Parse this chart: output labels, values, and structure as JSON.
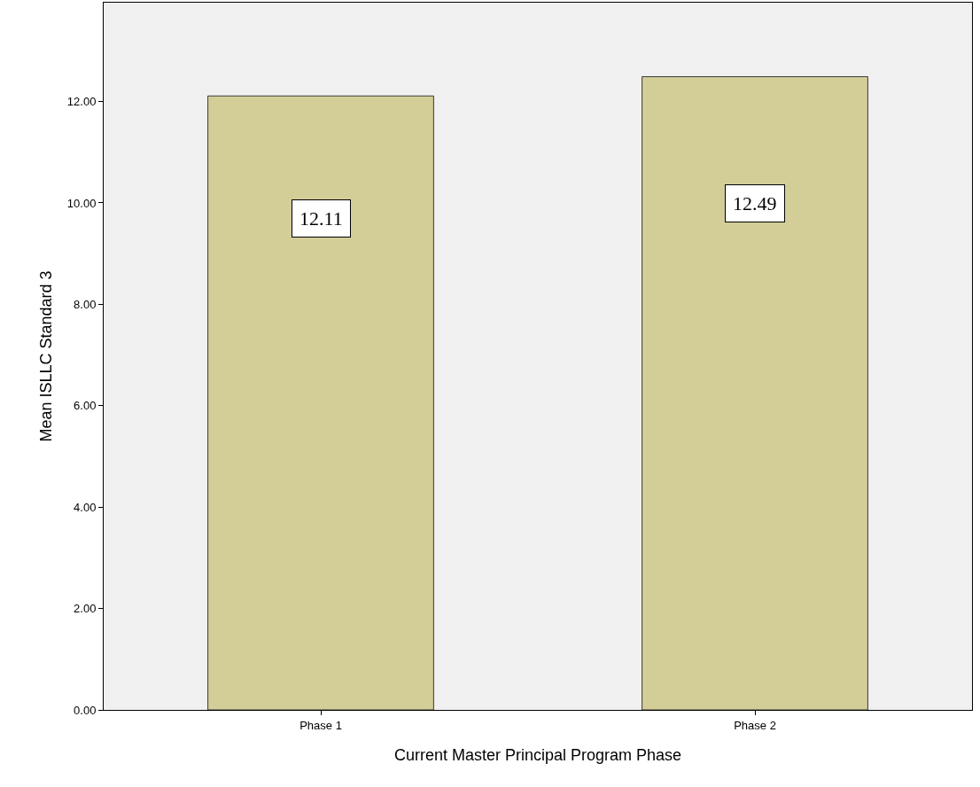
{
  "chart_data": {
    "type": "bar",
    "xlabel": "Current Master Principal Program Phase",
    "ylabel": "Mean ISLLC Standard 3",
    "categories": [
      "Phase 1",
      "Phase 2"
    ],
    "values": [
      12.11,
      12.49
    ],
    "color": "#d3ce97",
    "data_labels": true,
    "ylim": [
      0,
      13.95
    ],
    "yticks": [
      {
        "value": 0,
        "label": "0.00"
      },
      {
        "value": 2,
        "label": "2.00"
      },
      {
        "value": 4,
        "label": "4.00"
      },
      {
        "value": 6,
        "label": "6.00"
      },
      {
        "value": 8,
        "label": "8.00"
      },
      {
        "value": 10,
        "label": "10.00"
      },
      {
        "value": 12,
        "label": "12.00"
      }
    ],
    "grid": false,
    "legend": false
  }
}
